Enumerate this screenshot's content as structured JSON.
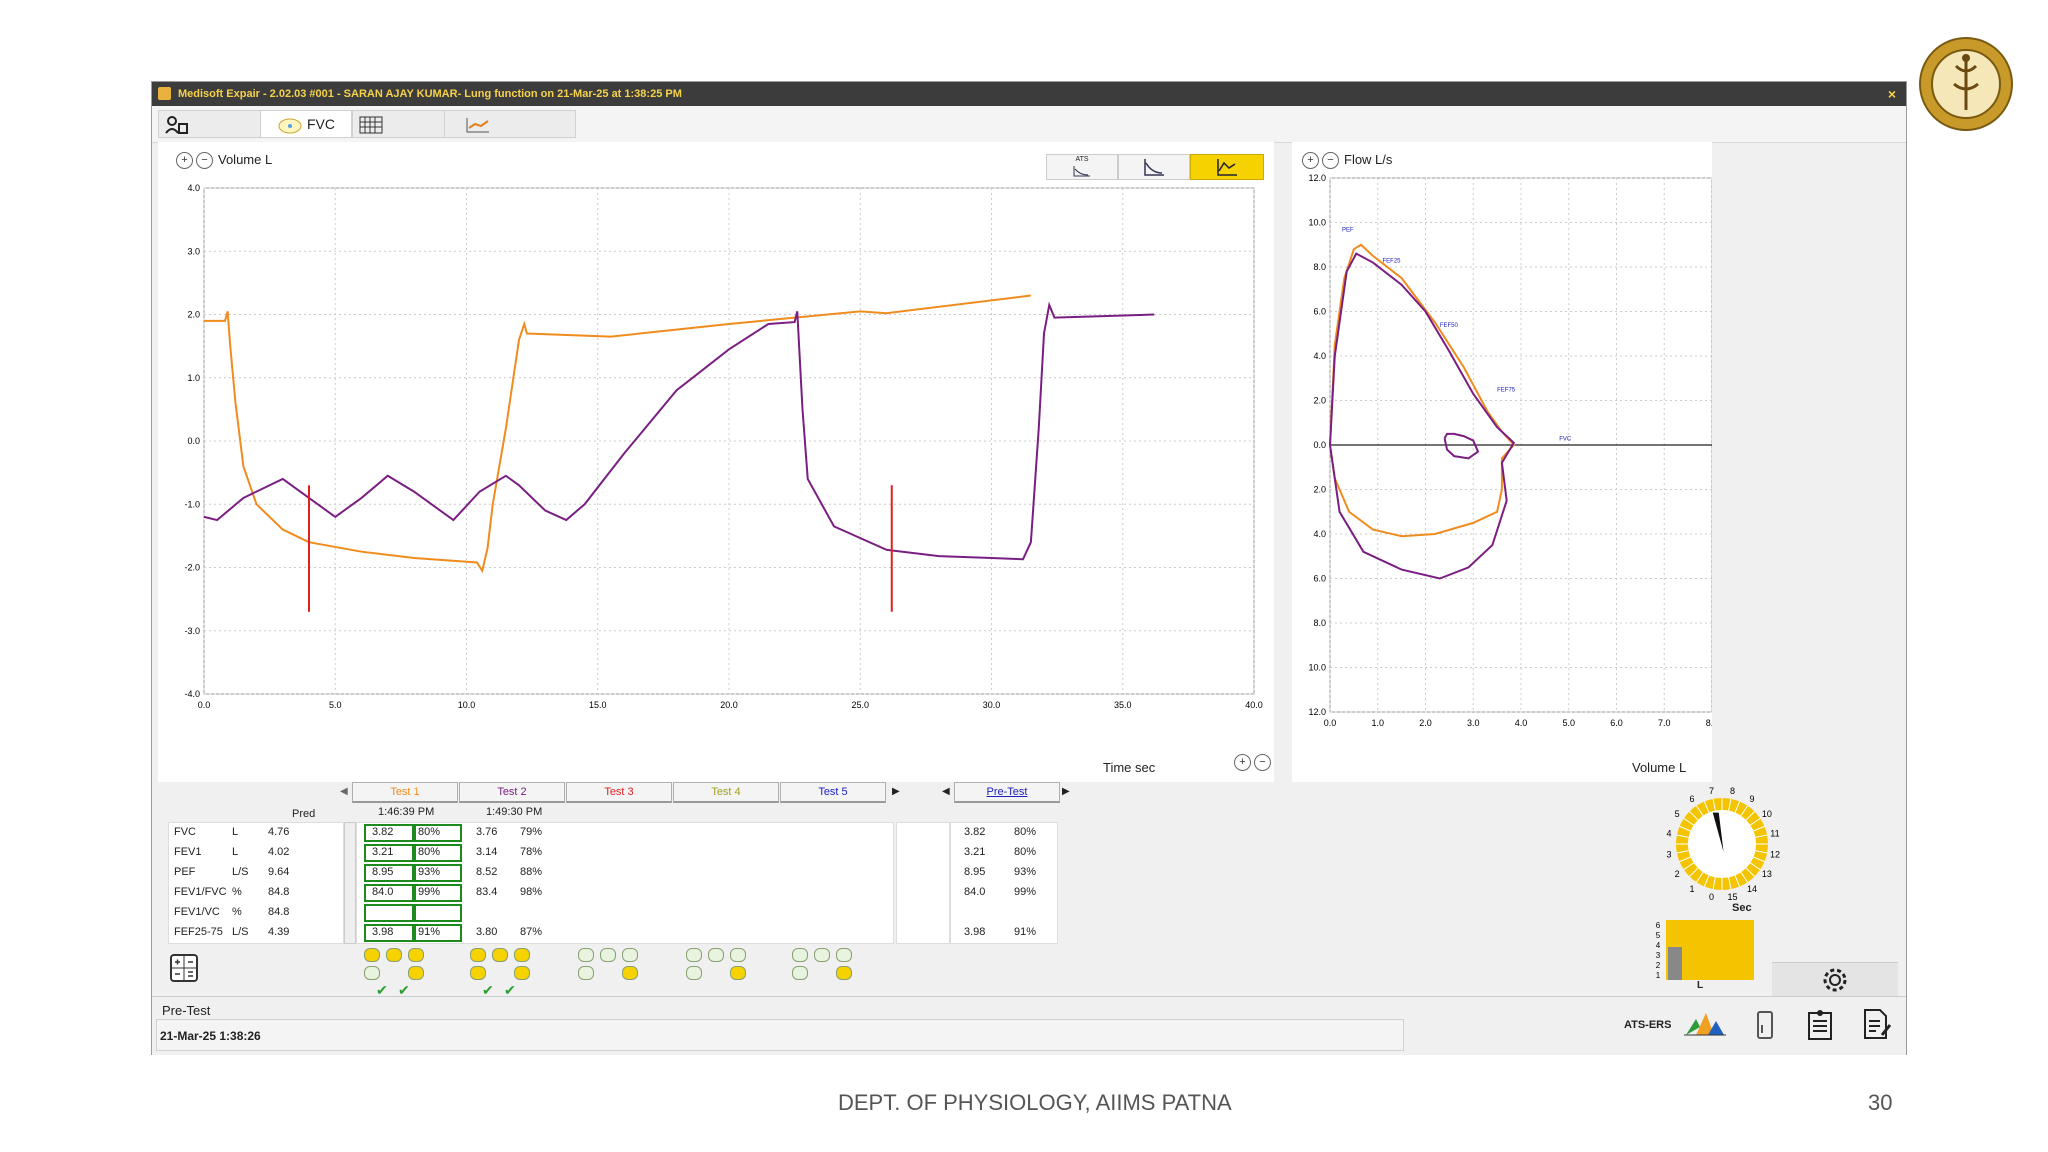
{
  "window": {
    "title": "Medisoft Expair - 2.02.03 #001 - SARAN AJAY KUMAR- Lung function on 21-Mar-25 at 1:38:25 PM",
    "close_glyph": "×"
  },
  "toolbar": {
    "fvc_label": "FVC"
  },
  "volume_chart": {
    "ylabel": "Volume L",
    "xlabel": "Time sec",
    "xlim": [
      0,
      40
    ],
    "ylim": [
      -4,
      4
    ],
    "xticks": [
      "0.0",
      "5.0",
      "10.0",
      "15.0",
      "20.0",
      "25.0",
      "30.0",
      "35.0",
      "40.0"
    ],
    "yticks": [
      "4.0",
      "3.0",
      "2.0",
      "1.0",
      "0.0",
      "-1.0",
      "-2.0",
      "-3.0",
      "-4.0"
    ],
    "view_buttons": [
      "ATS"
    ],
    "series": [
      {
        "color": "#f08c1e",
        "points": [
          [
            0,
            1.9
          ],
          [
            0.8,
            1.9
          ],
          [
            0.9,
            2.05
          ],
          [
            1.0,
            1.5
          ],
          [
            1.2,
            0.6
          ],
          [
            1.5,
            -0.4
          ],
          [
            2,
            -1.0
          ],
          [
            3,
            -1.4
          ],
          [
            4,
            -1.6
          ],
          [
            6,
            -1.75
          ],
          [
            8,
            -1.85
          ],
          [
            10.4,
            -1.92
          ],
          [
            10.6,
            -2.05
          ],
          [
            10.8,
            -1.7
          ],
          [
            11,
            -1.0
          ],
          [
            11.5,
            0.2
          ],
          [
            12,
            1.6
          ],
          [
            12.2,
            1.85
          ],
          [
            12.3,
            1.7
          ],
          [
            15.5,
            1.65
          ],
          [
            20,
            1.85
          ],
          [
            25,
            2.05
          ],
          [
            26,
            2.02
          ],
          [
            31.5,
            2.3
          ]
        ]
      },
      {
        "color": "#7a1e82",
        "points": [
          [
            0,
            -1.2
          ],
          [
            0.5,
            -1.25
          ],
          [
            1.5,
            -0.9
          ],
          [
            2.5,
            -0.7
          ],
          [
            3,
            -0.6
          ],
          [
            4,
            -0.9
          ],
          [
            5,
            -1.2
          ],
          [
            6,
            -0.9
          ],
          [
            7,
            -0.55
          ],
          [
            8,
            -0.8
          ],
          [
            9.5,
            -1.25
          ],
          [
            10.5,
            -0.8
          ],
          [
            11.5,
            -0.55
          ],
          [
            12,
            -0.7
          ],
          [
            13,
            -1.1
          ],
          [
            13.8,
            -1.25
          ],
          [
            14.5,
            -1.0
          ],
          [
            16,
            -0.2
          ],
          [
            18,
            0.8
          ],
          [
            20,
            1.45
          ],
          [
            21.5,
            1.85
          ],
          [
            22.5,
            1.88
          ],
          [
            22.6,
            2.05
          ],
          [
            22.8,
            0.5
          ],
          [
            23,
            -0.6
          ],
          [
            24,
            -1.35
          ],
          [
            26,
            -1.72
          ],
          [
            28,
            -1.82
          ],
          [
            30,
            -1.85
          ],
          [
            31.2,
            -1.87
          ],
          [
            31.5,
            -1.6
          ],
          [
            31.8,
            0.2
          ],
          [
            32,
            1.7
          ],
          [
            32.2,
            2.15
          ],
          [
            32.4,
            1.95
          ],
          [
            36.2,
            2.0
          ]
        ]
      }
    ],
    "markers": [
      {
        "x": 4.0,
        "y0": -0.7,
        "y1": -2.7,
        "color": "#e02020"
      },
      {
        "x": 26.2,
        "y0": -0.7,
        "y1": -2.7,
        "color": "#e02020"
      }
    ]
  },
  "flow_chart": {
    "ylabel": "Flow L/s",
    "xlabel": "Volume L",
    "xlim": [
      0,
      8
    ],
    "ylim": [
      -12,
      12
    ],
    "xticks": [
      "0.0",
      "1.0",
      "2.0",
      "3.0",
      "4.0",
      "5.0",
      "6.0",
      "7.0",
      "8.0"
    ],
    "yticks": [
      "12.0",
      "10.0",
      "8.0",
      "6.0",
      "4.0",
      "2.0",
      "0.0",
      "2.0",
      "4.0",
      "6.0",
      "8.0",
      "10.0",
      "12.0"
    ],
    "annotations": [
      {
        "text": "PEF",
        "x": 0.25,
        "y": 9.6
      },
      {
        "text": "FEF25",
        "x": 1.1,
        "y": 8.2
      },
      {
        "text": "FEF50",
        "x": 2.3,
        "y": 5.3
      },
      {
        "text": "FEF75",
        "x": 3.5,
        "y": 2.4
      },
      {
        "text": "FVC",
        "x": 4.8,
        "y": 0.2
      }
    ],
    "series": [
      {
        "color": "#f08c1e",
        "points": [
          [
            0,
            0
          ],
          [
            0.1,
            4.5
          ],
          [
            0.3,
            7.5
          ],
          [
            0.5,
            8.8
          ],
          [
            0.65,
            9.0
          ],
          [
            0.9,
            8.5
          ],
          [
            1.5,
            7.5
          ],
          [
            2.2,
            5.5
          ],
          [
            2.8,
            3.5
          ],
          [
            3.3,
            1.5
          ],
          [
            3.6,
            0.6
          ],
          [
            3.85,
            0
          ],
          [
            3.6,
            -0.6
          ],
          [
            3.6,
            -2.0
          ],
          [
            3.5,
            -3.0
          ],
          [
            3.0,
            -3.5
          ],
          [
            2.2,
            -4.0
          ],
          [
            1.5,
            -4.1
          ],
          [
            0.9,
            -3.8
          ],
          [
            0.4,
            -3.0
          ],
          [
            0.1,
            -1.5
          ],
          [
            0,
            0
          ]
        ]
      },
      {
        "color": "#7a1e82",
        "points": [
          [
            0,
            0
          ],
          [
            0.1,
            4.0
          ],
          [
            0.35,
            7.8
          ],
          [
            0.55,
            8.6
          ],
          [
            0.9,
            8.2
          ],
          [
            1.5,
            7.2
          ],
          [
            2.0,
            6.0
          ],
          [
            2.5,
            4.2
          ],
          [
            3.0,
            2.3
          ],
          [
            3.5,
            0.8
          ],
          [
            3.85,
            0.1
          ],
          [
            3.6,
            -0.8
          ],
          [
            3.7,
            -2.5
          ],
          [
            3.4,
            -4.5
          ],
          [
            2.9,
            -5.5
          ],
          [
            2.3,
            -6.0
          ],
          [
            1.5,
            -5.6
          ],
          [
            0.7,
            -4.8
          ],
          [
            0.2,
            -3.0
          ],
          [
            0,
            0
          ]
        ]
      },
      {
        "color": "#7a1e82",
        "points": [
          [
            2.4,
            0.3
          ],
          [
            2.45,
            0.5
          ],
          [
            2.6,
            0.5
          ],
          [
            2.8,
            0.4
          ],
          [
            3.0,
            0.2
          ],
          [
            3.1,
            -0.3
          ],
          [
            2.9,
            -0.6
          ],
          [
            2.6,
            -0.5
          ],
          [
            2.45,
            -0.2
          ],
          [
            2.4,
            0.3
          ]
        ]
      }
    ]
  },
  "results": {
    "pred_header": "Pred",
    "tabs": [
      {
        "label": "Test 1",
        "color": "#f08c1e",
        "time": "1:46:39 PM"
      },
      {
        "label": "Test 2",
        "color": "#7a1e82",
        "time": "1:49:30 PM"
      },
      {
        "label": "Test 3",
        "color": "#e02020",
        "time": ""
      },
      {
        "label": "Test 4",
        "color": "#a0a020",
        "time": ""
      },
      {
        "label": "Test 5",
        "color": "#2020c0",
        "time": ""
      }
    ],
    "pretest_tab": "Pre-Test",
    "rows": [
      {
        "param": "FVC",
        "unit": "L",
        "pred": "4.76",
        "t1": "3.82",
        "t1p": "80%",
        "t2": "3.76",
        "t2p": "79%",
        "pre": "3.82",
        "prep": "80%"
      },
      {
        "param": "FEV1",
        "unit": "L",
        "pred": "4.02",
        "t1": "3.21",
        "t1p": "80%",
        "t2": "3.14",
        "t2p": "78%",
        "pre": "3.21",
        "prep": "80%"
      },
      {
        "param": "PEF",
        "unit": "L/S",
        "pred": "9.64",
        "t1": "8.95",
        "t1p": "93%",
        "t2": "8.52",
        "t2p": "88%",
        "pre": "8.95",
        "prep": "93%"
      },
      {
        "param": "FEV1/FVC",
        "unit": "%",
        "pred": "84.8",
        "t1": "84.0",
        "t1p": "99%",
        "t2": "83.4",
        "t2p": "98%",
        "pre": "84.0",
        "prep": "99%"
      },
      {
        "param": "FEV1/VC",
        "unit": "%",
        "pred": "84.8",
        "t1": "",
        "t1p": "",
        "t2": "",
        "t2p": "",
        "pre": "",
        "prep": ""
      },
      {
        "param": "FEF25-75",
        "unit": "L/S",
        "pred": "4.39",
        "t1": "3.98",
        "t1p": "91%",
        "t2": "3.80",
        "t2p": "87%",
        "pre": "3.98",
        "prep": "91%"
      }
    ]
  },
  "gauge": {
    "numbers": [
      "0",
      "1",
      "2",
      "3",
      "4",
      "5",
      "6",
      "7",
      "8",
      "9",
      "10",
      "11",
      "12",
      "13",
      "14",
      "15"
    ],
    "sec_label": "Sec",
    "needle_value": 7,
    "bar_ticks": [
      "6",
      "5",
      "4",
      "3",
      "2",
      "1"
    ],
    "bar_unit": "L",
    "bar_fill": 0.55
  },
  "status": {
    "session_label": "Pre-Test",
    "timestamp": "21-Mar-25 1:38:26",
    "ats_label": "ATS-ERS"
  },
  "slide": {
    "footer": "DEPT. OF PHYSIOLOGY, AIIMS PATNA",
    "page": "30"
  },
  "colors": {
    "orange": "#f08c1e",
    "purple": "#7a1e82",
    "yellow": "#f5c400",
    "green": "#1c8a1c"
  }
}
